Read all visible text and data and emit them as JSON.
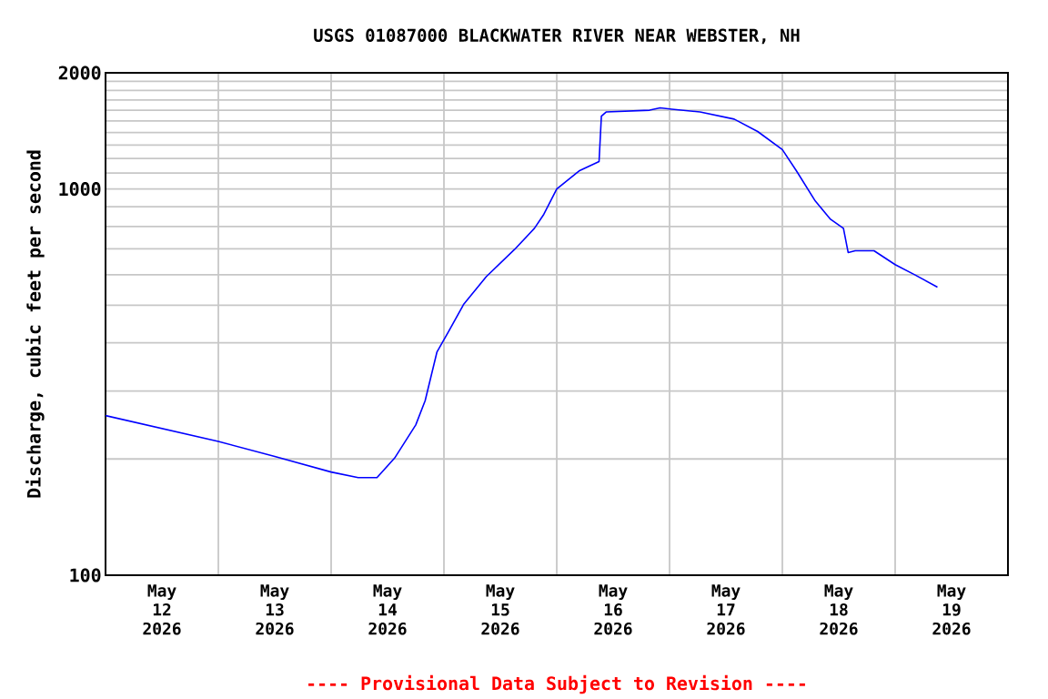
{
  "chart_data": {
    "type": "line",
    "title": "USGS 01087000 BLACKWATER RIVER NEAR WEBSTER, NH",
    "ylabel": "Discharge, cubic feet per second",
    "annotations": [
      "---- Provisional Data Subject to Revision ----"
    ],
    "log": "y",
    "grid": true,
    "marker": "none",
    "line_style": "solid",
    "xlim": [
      "2026-05-12T00:00",
      "2026-05-20T00:00"
    ],
    "xticks": [
      {
        "value": "2026-05-12T12:00",
        "label": "May 12 2026"
      },
      {
        "value": "2026-05-13T12:00",
        "label": "May 13 2026"
      },
      {
        "value": "2026-05-14T12:00",
        "label": "May 14 2026"
      },
      {
        "value": "2026-05-15T12:00",
        "label": "May 15 2026"
      },
      {
        "value": "2026-05-16T12:00",
        "label": "May 16 2026"
      },
      {
        "value": "2026-05-17T12:00",
        "label": "May 17 2026"
      },
      {
        "value": "2026-05-18T12:00",
        "label": "May 18 2026"
      },
      {
        "value": "2026-05-19T12:00",
        "label": "May 19 2026"
      },
      {
        "value": "2026-05-13T00:00",
        "label": null
      },
      {
        "value": "2026-05-14T00:00",
        "label": null
      },
      {
        "value": "2026-05-15T00:00",
        "label": null
      },
      {
        "value": "2026-05-16T00:00",
        "label": null
      },
      {
        "value": "2026-05-17T00:00",
        "label": null
      },
      {
        "value": "2026-05-18T00:00",
        "label": null
      },
      {
        "value": "2026-05-19T00:00",
        "label": null
      }
    ],
    "ylim": [
      100,
      2000
    ],
    "yticks": [
      100,
      1000,
      2000,
      {
        "value": 200,
        "label": null
      },
      {
        "value": 300,
        "label": null
      },
      {
        "value": 400,
        "label": null
      },
      {
        "value": 500,
        "label": null
      },
      {
        "value": 600,
        "label": null
      },
      {
        "value": 700,
        "label": null
      },
      {
        "value": 800,
        "label": null
      },
      {
        "value": 900,
        "label": null
      },
      {
        "value": 1100,
        "label": null
      },
      {
        "value": 1200,
        "label": null
      },
      {
        "value": 1300,
        "label": null
      },
      {
        "value": 1400,
        "label": null
      },
      {
        "value": 1500,
        "label": null
      },
      {
        "value": 1600,
        "label": null
      },
      {
        "value": 1700,
        "label": null
      },
      {
        "value": 1800,
        "label": null
      },
      {
        "value": 1900,
        "label": null
      }
    ],
    "x": [
      "2026-05-12T00:00",
      "2026-05-13T00:00",
      "2026-05-13T12:00",
      "2026-05-14T00:00",
      "2026-05-14T05:45",
      "2026-05-14T09:45",
      "2026-05-14T13:30",
      "2026-05-14T18:00",
      "2026-05-14T20:00",
      "2026-05-14T22:30",
      "2026-05-15T01:00",
      "2026-05-15T04:15",
      "2026-05-15T09:00",
      "2026-05-15T15:00",
      "2026-05-15T19:15",
      "2026-05-15T21:15",
      "2026-05-16T00:00",
      "2026-05-16T04:45",
      "2026-05-16T09:00",
      "2026-05-16T09:30",
      "2026-05-16T10:30",
      "2026-05-16T19:45",
      "2026-05-16T22:00",
      "2026-05-17T00:30",
      "2026-05-17T06:30",
      "2026-05-17T13:45",
      "2026-05-17T18:45",
      "2026-05-18T00:00",
      "2026-05-18T03:00",
      "2026-05-18T07:00",
      "2026-05-18T10:15",
      "2026-05-18T13:00",
      "2026-05-18T14:00",
      "2026-05-18T15:30",
      "2026-05-18T19:30",
      "2026-05-19T00:00",
      "2026-05-19T04:15",
      "2026-05-19T09:00"
    ],
    "series": [
      {
        "color": "#0000ff",
        "values": [
          259,
          222,
          203,
          185,
          179,
          179,
          201,
          245,
          283,
          378,
          428,
          504,
          593,
          697,
          791,
          860,
          1000,
          1114,
          1178,
          1545,
          1583,
          1600,
          1622,
          1610,
          1583,
          1517,
          1409,
          1265,
          1114,
          931,
          835,
          791,
          685,
          692,
          692,
          637,
          599,
          557
        ]
      }
    ]
  }
}
